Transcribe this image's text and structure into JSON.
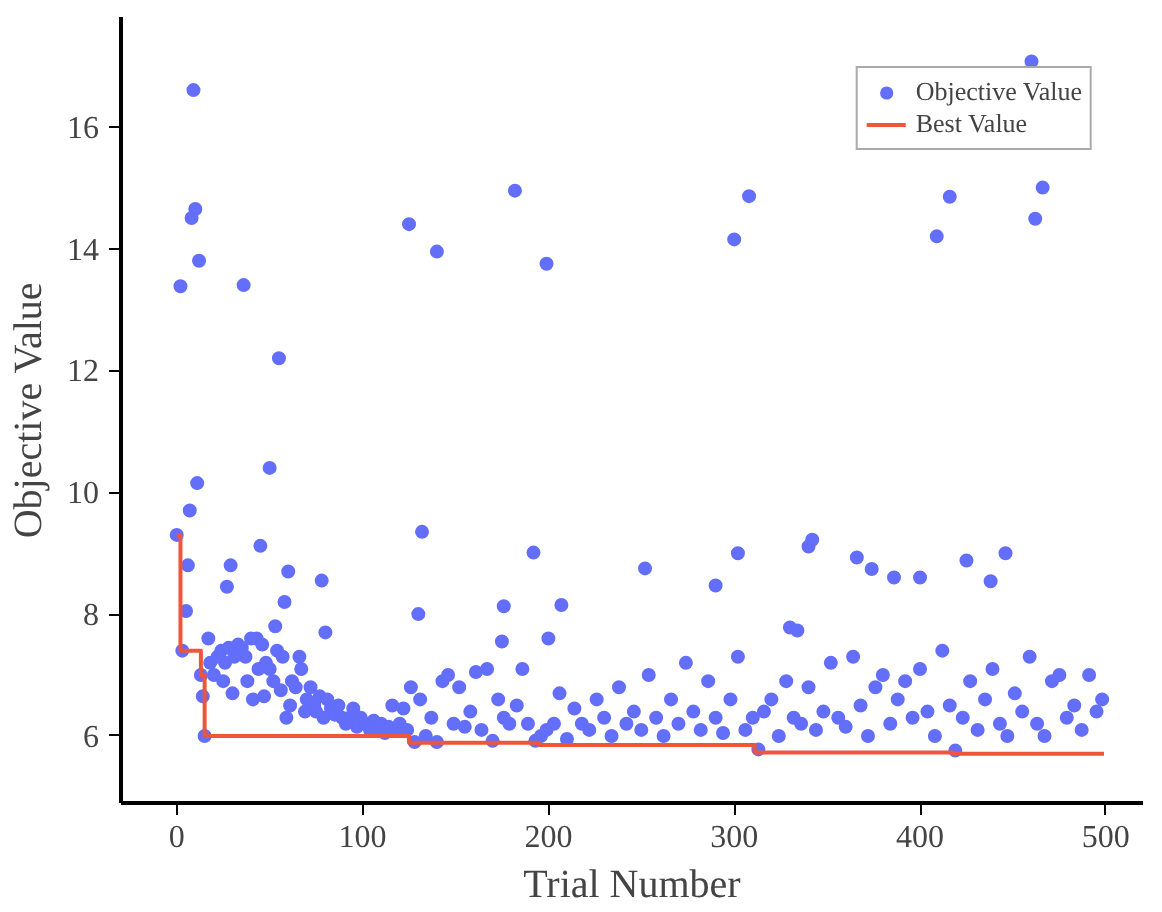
{
  "chart_data": {
    "type": "scatter",
    "xlabel": "Trial Number",
    "ylabel": "Objective Value",
    "xlim": [
      -30,
      520
    ],
    "ylim": [
      4.9,
      17.8
    ],
    "xticks": [
      0,
      100,
      200,
      300,
      400,
      500
    ],
    "yticks": [
      6,
      8,
      10,
      12,
      14,
      16
    ],
    "grid": false,
    "legend": "top right",
    "series": [
      {
        "name": "Objective Value",
        "marker": "circle",
        "color": "#636efa",
        "x": [
          0,
          2,
          3,
          5,
          6,
          7,
          8,
          9,
          10,
          11,
          12,
          13,
          14,
          15,
          17,
          18,
          20,
          22,
          24,
          25,
          26,
          27,
          28,
          29,
          30,
          31,
          33,
          35,
          36,
          37,
          38,
          40,
          41,
          43,
          44,
          45,
          46,
          47,
          48,
          50,
          50,
          52,
          53,
          54,
          55,
          56,
          57,
          58,
          59,
          60,
          61,
          62,
          64,
          66,
          67,
          69,
          70,
          72,
          74,
          75,
          77,
          78,
          79,
          80,
          81,
          83,
          85,
          87,
          89,
          91,
          93,
          95,
          97,
          99,
          102,
          104,
          106,
          108,
          110,
          112,
          114,
          116,
          118,
          120,
          122,
          124,
          125,
          126,
          128,
          130,
          131,
          132,
          134,
          137,
          140,
          140,
          143,
          146,
          149,
          152,
          155,
          158,
          161,
          164,
          167,
          170,
          173,
          175,
          176,
          176,
          179,
          182,
          183,
          186,
          189,
          192,
          193,
          196,
          199,
          199,
          200,
          203,
          206,
          207,
          210,
          214,
          218,
          222,
          226,
          230,
          234,
          238,
          242,
          246,
          250,
          252,
          254,
          258,
          262,
          266,
          270,
          274,
          278,
          282,
          286,
          290,
          290,
          294,
          298,
          300,
          302,
          302,
          306,
          308,
          310,
          313,
          316,
          320,
          324,
          328,
          330,
          332,
          334,
          336,
          340,
          340,
          342,
          344,
          348,
          352,
          356,
          360,
          364,
          366,
          368,
          372,
          374,
          376,
          380,
          384,
          386,
          388,
          392,
          396,
          400,
          400,
          404,
          408,
          409,
          412,
          416,
          416,
          419,
          423,
          425,
          427,
          431,
          435,
          438,
          439,
          443,
          446,
          447,
          451,
          455,
          459,
          460,
          462,
          463,
          466,
          467,
          471,
          475,
          479,
          483,
          487,
          491,
          495,
          498
        ],
        "values": [
          9.3,
          13.38,
          7.4,
          8.05,
          8.8,
          9.7,
          14.5,
          16.6,
          14.65,
          10.15,
          13.8,
          7.0,
          6.65,
          6.0,
          7.6,
          7.2,
          7.0,
          7.3,
          7.4,
          6.9,
          7.2,
          8.45,
          7.45,
          8.8,
          6.7,
          7.3,
          7.5,
          7.45,
          13.4,
          7.3,
          6.9,
          7.6,
          6.6,
          7.6,
          7.1,
          9.12,
          7.5,
          6.65,
          7.2,
          7.1,
          10.4,
          6.9,
          7.8,
          7.4,
          12.2,
          6.75,
          7.3,
          8.2,
          6.3,
          8.7,
          6.5,
          6.9,
          6.8,
          7.3,
          7.1,
          6.4,
          6.6,
          6.8,
          6.5,
          6.4,
          6.65,
          8.55,
          6.3,
          7.7,
          6.6,
          6.45,
          6.35,
          6.5,
          6.3,
          6.2,
          6.3,
          6.45,
          6.15,
          6.3,
          6.2,
          6.1,
          6.25,
          6.1,
          6.2,
          6.05,
          6.15,
          6.5,
          6.1,
          6.2,
          6.45,
          6.1,
          14.4,
          6.8,
          5.9,
          8.0,
          6.6,
          9.35,
          6.0,
          6.3,
          13.95,
          5.9,
          6.9,
          7.0,
          6.2,
          6.8,
          6.15,
          6.4,
          7.05,
          6.1,
          7.1,
          5.92,
          6.6,
          7.55,
          8.13,
          6.3,
          6.2,
          14.95,
          6.5,
          7.1,
          6.2,
          9.01,
          5.92,
          6.0,
          13.75,
          6.1,
          7.6,
          6.2,
          6.7,
          8.15,
          5.95,
          6.45,
          6.2,
          6.1,
          6.6,
          6.3,
          6.0,
          6.8,
          6.2,
          6.4,
          6.1,
          8.75,
          7.0,
          6.3,
          6.0,
          6.6,
          6.2,
          7.2,
          6.4,
          6.1,
          6.9,
          8.47,
          6.3,
          6.05,
          6.6,
          14.15,
          9.0,
          7.3,
          6.1,
          14.86,
          6.3,
          5.78,
          6.4,
          6.6,
          6.0,
          6.9,
          7.78,
          6.3,
          7.73,
          6.2,
          9.11,
          6.8,
          9.22,
          6.1,
          6.4,
          7.2,
          6.3,
          6.15,
          7.3,
          8.93,
          6.5,
          6.0,
          8.74,
          6.8,
          7.0,
          6.2,
          8.6,
          6.6,
          6.9,
          6.3,
          8.6,
          7.1,
          6.4,
          6.0,
          14.2,
          7.4,
          6.5,
          14.85,
          5.76,
          6.3,
          8.88,
          6.9,
          6.1,
          6.6,
          8.54,
          7.1,
          6.2,
          9.0,
          6.0,
          6.7,
          6.4,
          7.3,
          17.07,
          14.49,
          6.2,
          15.0,
          6.0,
          6.9,
          7.0,
          6.3,
          6.5,
          6.1,
          7.0,
          6.4,
          6.6
        ]
      },
      {
        "name": "Best Value",
        "type": "step",
        "marker": "none",
        "color": "#ef553b",
        "x": [
          0,
          2,
          13,
          15,
          125,
          195,
          311,
          418,
          499
        ],
        "values": [
          9.3,
          7.4,
          7.0,
          6.0,
          5.89,
          5.85,
          5.73,
          5.71,
          5.71
        ]
      }
    ]
  }
}
